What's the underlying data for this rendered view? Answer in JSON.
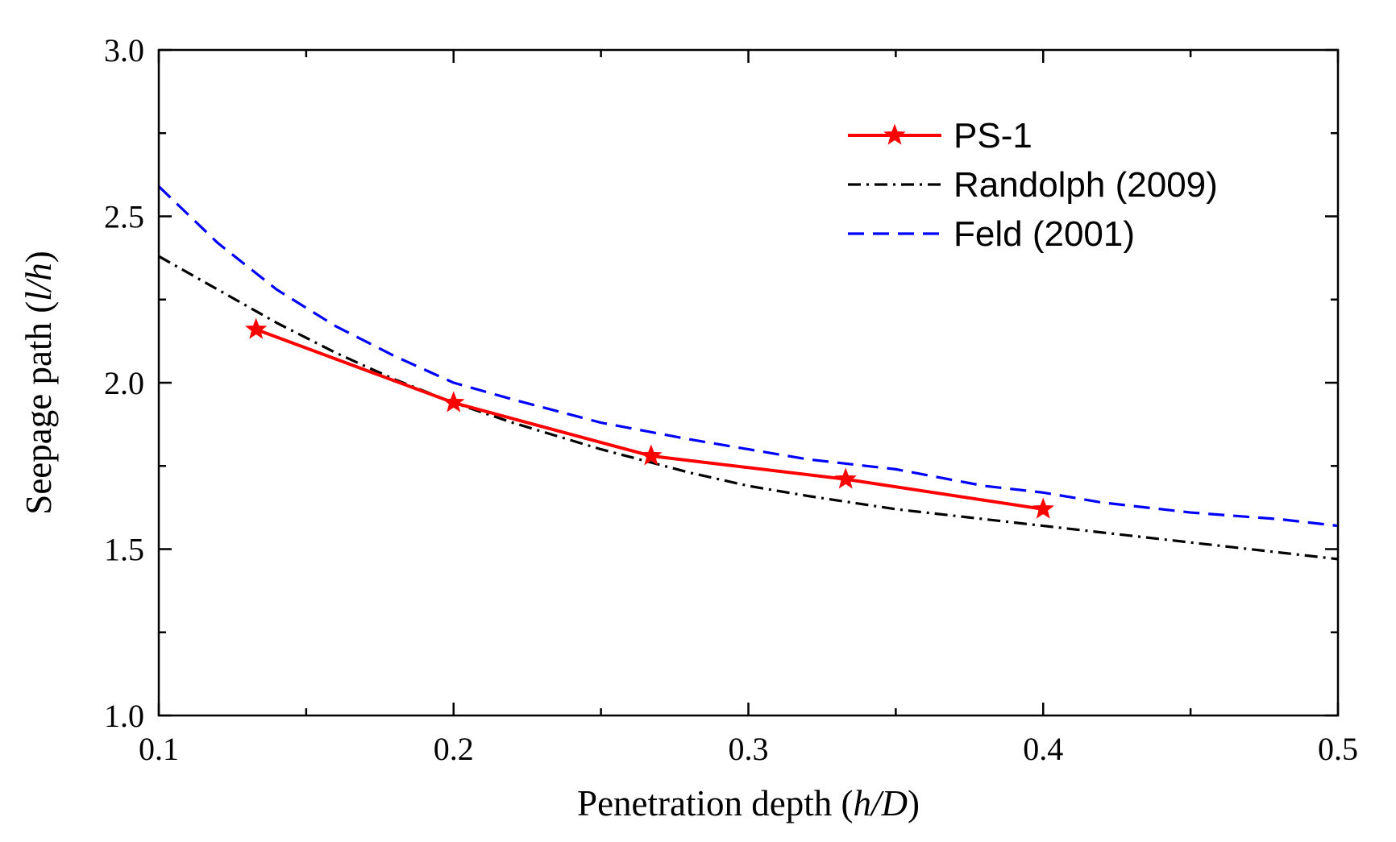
{
  "chart_data": {
    "type": "line",
    "title": "",
    "xlabel": {
      "prefix": "Penetration depth (",
      "italic": "h/D",
      "suffix": ")"
    },
    "ylabel": {
      "prefix": "Seepage path (",
      "italic": "l/h",
      "suffix": ")"
    },
    "xlim": [
      0.1,
      0.5
    ],
    "ylim": [
      1.0,
      3.0
    ],
    "xticks": [
      0.1,
      0.2,
      0.3,
      0.4,
      0.5
    ],
    "xtick_labels": [
      "0.1",
      "0.2",
      "0.3",
      "0.4",
      "0.5"
    ],
    "yticks": [
      1.0,
      1.5,
      2.0,
      2.5,
      3.0
    ],
    "ytick_labels": [
      "1.0",
      "1.5",
      "2.0",
      "2.5",
      "3.0"
    ],
    "grid": false,
    "legend_position": "top-right",
    "series": [
      {
        "name": "PS-1",
        "color": "#ff0000",
        "line_style": "solid",
        "marker": "star",
        "x": [
          0.133,
          0.2,
          0.267,
          0.333,
          0.4
        ],
        "y": [
          2.16,
          1.94,
          1.78,
          1.71,
          1.62
        ]
      },
      {
        "name": "Randolph (2009)",
        "color": "#000000",
        "line_style": "dash-dot",
        "marker": "none",
        "x": [
          0.1,
          0.12,
          0.14,
          0.16,
          0.18,
          0.2,
          0.22,
          0.25,
          0.28,
          0.3,
          0.32,
          0.35,
          0.38,
          0.4,
          0.42,
          0.45,
          0.48,
          0.5
        ],
        "y": [
          2.38,
          2.28,
          2.18,
          2.09,
          2.01,
          1.94,
          1.88,
          1.8,
          1.73,
          1.69,
          1.66,
          1.62,
          1.59,
          1.57,
          1.55,
          1.52,
          1.49,
          1.47
        ]
      },
      {
        "name": "Feld (2001)",
        "color": "#0000ff",
        "line_style": "dashed",
        "marker": "none",
        "x": [
          0.1,
          0.12,
          0.14,
          0.16,
          0.18,
          0.2,
          0.22,
          0.25,
          0.28,
          0.3,
          0.32,
          0.35,
          0.38,
          0.4,
          0.42,
          0.45,
          0.48,
          0.5
        ],
        "y": [
          2.59,
          2.42,
          2.28,
          2.17,
          2.08,
          2.0,
          1.95,
          1.88,
          1.83,
          1.8,
          1.77,
          1.74,
          1.69,
          1.67,
          1.64,
          1.61,
          1.59,
          1.57
        ]
      }
    ]
  }
}
